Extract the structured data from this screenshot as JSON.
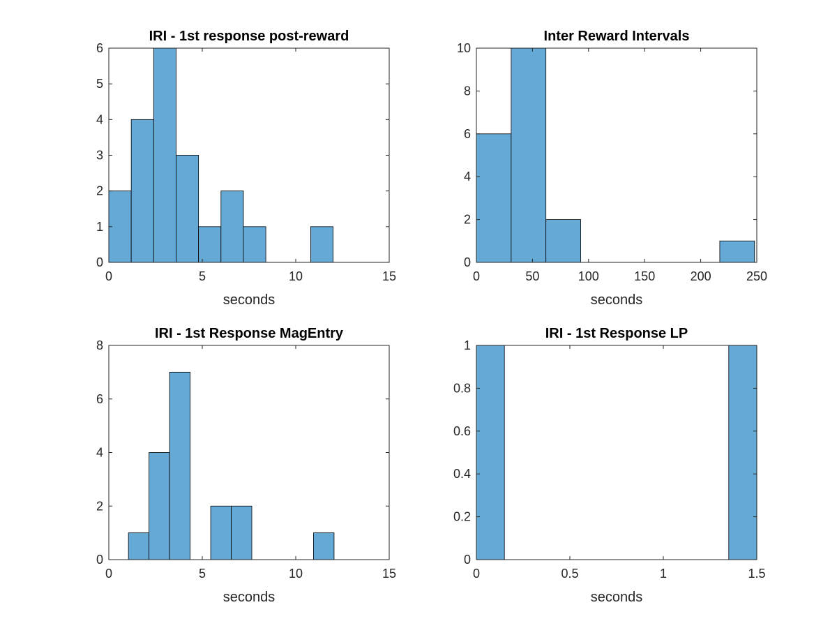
{
  "chart_data": [
    {
      "type": "bar",
      "title": "IRI - 1st response post-reward",
      "xlabel": "seconds",
      "ylabel": "",
      "xlim": [
        0,
        15
      ],
      "ylim": [
        0,
        6
      ],
      "xticks": [
        "0",
        "5",
        "10",
        "15"
      ],
      "yticks": [
        "0",
        "1",
        "2",
        "3",
        "4",
        "5",
        "6"
      ],
      "bins": [
        {
          "x0": 0,
          "x1": 1.2,
          "count": 2
        },
        {
          "x0": 1.2,
          "x1": 2.4,
          "count": 4
        },
        {
          "x0": 2.4,
          "x1": 3.6,
          "count": 6
        },
        {
          "x0": 3.6,
          "x1": 4.8,
          "count": 3
        },
        {
          "x0": 4.8,
          "x1": 6.0,
          "count": 1
        },
        {
          "x0": 6.0,
          "x1": 7.2,
          "count": 2
        },
        {
          "x0": 7.2,
          "x1": 8.4,
          "count": 1
        },
        {
          "x0": 8.4,
          "x1": 9.6,
          "count": 0
        },
        {
          "x0": 9.6,
          "x1": 10.8,
          "count": 0
        },
        {
          "x0": 10.8,
          "x1": 12.0,
          "count": 1
        }
      ]
    },
    {
      "type": "bar",
      "title": "Inter Reward Intervals",
      "xlabel": "seconds",
      "ylabel": "",
      "xlim": [
        0,
        250
      ],
      "ylim": [
        0,
        10
      ],
      "xticks": [
        "0",
        "50",
        "100",
        "150",
        "200",
        "250"
      ],
      "yticks": [
        "0",
        "2",
        "4",
        "6",
        "8",
        "10"
      ],
      "bins": [
        {
          "x0": 0,
          "x1": 31,
          "count": 6
        },
        {
          "x0": 31,
          "x1": 62,
          "count": 10
        },
        {
          "x0": 62,
          "x1": 93,
          "count": 2
        },
        {
          "x0": 93,
          "x1": 124,
          "count": 0
        },
        {
          "x0": 124,
          "x1": 155,
          "count": 0
        },
        {
          "x0": 155,
          "x1": 186,
          "count": 0
        },
        {
          "x0": 186,
          "x1": 217,
          "count": 0
        },
        {
          "x0": 217,
          "x1": 248,
          "count": 1
        }
      ]
    },
    {
      "type": "bar",
      "title": "IRI - 1st Response MagEntry",
      "xlabel": "seconds",
      "ylabel": "",
      "xlim": [
        0,
        15
      ],
      "ylim": [
        0,
        8
      ],
      "xticks": [
        "0",
        "5",
        "10",
        "15"
      ],
      "yticks": [
        "0",
        "2",
        "4",
        "6",
        "8"
      ],
      "bins": [
        {
          "x0": 1.05,
          "x1": 2.15,
          "count": 1
        },
        {
          "x0": 2.15,
          "x1": 3.25,
          "count": 4
        },
        {
          "x0": 3.25,
          "x1": 4.35,
          "count": 7
        },
        {
          "x0": 4.35,
          "x1": 5.45,
          "count": 0
        },
        {
          "x0": 5.45,
          "x1": 6.55,
          "count": 2
        },
        {
          "x0": 6.55,
          "x1": 7.65,
          "count": 2
        },
        {
          "x0": 7.65,
          "x1": 8.75,
          "count": 0
        },
        {
          "x0": 8.75,
          "x1": 9.85,
          "count": 0
        },
        {
          "x0": 9.85,
          "x1": 10.95,
          "count": 0
        },
        {
          "x0": 10.95,
          "x1": 12.05,
          "count": 1
        }
      ]
    },
    {
      "type": "bar",
      "title": "IRI - 1st Response LP",
      "xlabel": "seconds",
      "ylabel": "",
      "xlim": [
        0,
        1.5
      ],
      "ylim": [
        0,
        1
      ],
      "xticks": [
        "0",
        "0.5",
        "1",
        "1.5"
      ],
      "yticks": [
        "0",
        "0.2",
        "0.4",
        "0.6",
        "0.8",
        "1"
      ],
      "bins": [
        {
          "x0": 0,
          "x1": 0.15,
          "count": 1
        },
        {
          "x0": 0.15,
          "x1": 0.3,
          "count": 0
        },
        {
          "x0": 0.3,
          "x1": 0.45,
          "count": 0
        },
        {
          "x0": 0.45,
          "x1": 0.6,
          "count": 0
        },
        {
          "x0": 0.6,
          "x1": 0.75,
          "count": 0
        },
        {
          "x0": 0.75,
          "x1": 0.9,
          "count": 0
        },
        {
          "x0": 0.9,
          "x1": 1.05,
          "count": 0
        },
        {
          "x0": 1.05,
          "x1": 1.2,
          "count": 0
        },
        {
          "x0": 1.2,
          "x1": 1.35,
          "count": 0
        },
        {
          "x0": 1.35,
          "x1": 1.5,
          "count": 1
        }
      ]
    }
  ],
  "colors": {
    "bar_fill": "#65a9d7",
    "bar_edge": "#000000",
    "axis": "#262626"
  }
}
